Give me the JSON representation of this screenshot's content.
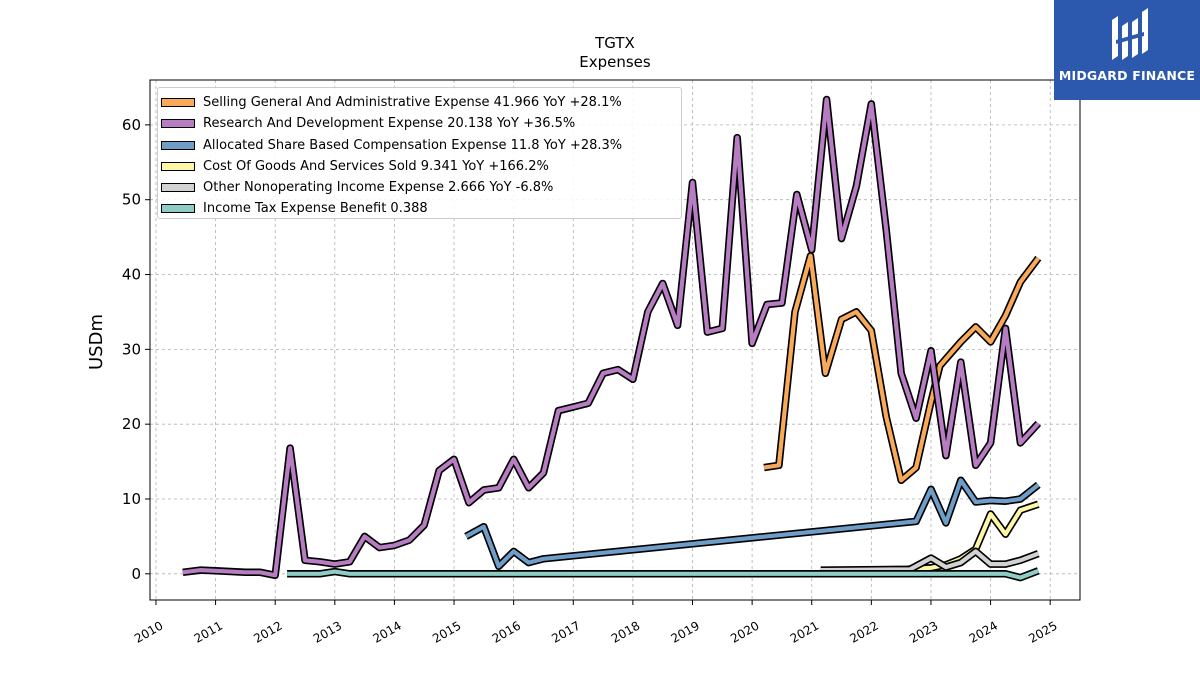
{
  "brand": {
    "name": "MIDGARD FINANCE"
  },
  "chart_data": {
    "type": "line",
    "title": "TGTX",
    "subtitle": "Expenses",
    "ylabel": "USDm",
    "xlabel": "",
    "ylim": [
      -3.5,
      66
    ],
    "xlim": [
      2009.9,
      2025.5
    ],
    "yticks": [
      0,
      10,
      20,
      30,
      40,
      50,
      60
    ],
    "xticks": [
      2010,
      2011,
      2012,
      2013,
      2014,
      2015,
      2016,
      2017,
      2018,
      2019,
      2020,
      2021,
      2022,
      2023,
      2024,
      2025
    ],
    "grid": true,
    "legend_position": "top-left",
    "series": [
      {
        "name": "Selling General And Administrative Expense",
        "legend_label": "Selling General And Administrative Expense  41.966 YoY +28.1%",
        "color": "#f9a95a",
        "points": [
          [
            2020.2,
            14.2
          ],
          [
            2020.45,
            14.5
          ],
          [
            2020.72,
            35
          ],
          [
            2020.98,
            42.5
          ],
          [
            2021.23,
            26.8
          ],
          [
            2021.5,
            34
          ],
          [
            2021.75,
            35
          ],
          [
            2022.0,
            32.5
          ],
          [
            2022.25,
            21
          ],
          [
            2022.5,
            12.5
          ],
          [
            2022.75,
            14.2
          ],
          [
            2023.0,
            23
          ],
          [
            2023.15,
            27.8
          ],
          [
            2023.5,
            31
          ],
          [
            2023.75,
            33
          ],
          [
            2024.0,
            31
          ],
          [
            2024.25,
            34.5
          ],
          [
            2024.5,
            39
          ],
          [
            2024.8,
            42.2
          ]
        ]
      },
      {
        "name": "Research And Development Expense",
        "legend_label": "Research And Development Expense  20.138 YoY +36.5%",
        "color": "#b77cc2",
        "points": [
          [
            2010.45,
            0.2
          ],
          [
            2010.75,
            0.5
          ],
          [
            2011.0,
            0.4
          ],
          [
            2011.5,
            0.2
          ],
          [
            2011.75,
            0.2
          ],
          [
            2012.0,
            -0.2
          ],
          [
            2012.25,
            16.8
          ],
          [
            2012.5,
            1.8
          ],
          [
            2012.75,
            1.6
          ],
          [
            2013.0,
            1.3
          ],
          [
            2013.25,
            1.6
          ],
          [
            2013.5,
            5
          ],
          [
            2013.75,
            3.5
          ],
          [
            2014.0,
            3.8
          ],
          [
            2014.25,
            4.5
          ],
          [
            2014.5,
            6.5
          ],
          [
            2014.75,
            13.8
          ],
          [
            2015.0,
            15.3
          ],
          [
            2015.25,
            9.5
          ],
          [
            2015.5,
            11.2
          ],
          [
            2015.75,
            11.5
          ],
          [
            2016.0,
            15.3
          ],
          [
            2016.25,
            11.5
          ],
          [
            2016.5,
            13.5
          ],
          [
            2016.75,
            21.8
          ],
          [
            2017.0,
            22.3
          ],
          [
            2017.25,
            22.8
          ],
          [
            2017.5,
            26.8
          ],
          [
            2017.75,
            27.3
          ],
          [
            2018.0,
            26
          ],
          [
            2018.25,
            35
          ],
          [
            2018.5,
            38.8
          ],
          [
            2018.75,
            33.2
          ],
          [
            2019.0,
            52.3
          ],
          [
            2019.25,
            32.3
          ],
          [
            2019.5,
            32.8
          ],
          [
            2019.75,
            58.3
          ],
          [
            2020.0,
            30.8
          ],
          [
            2020.25,
            36
          ],
          [
            2020.5,
            36.2
          ],
          [
            2020.75,
            50.7
          ],
          [
            2021.0,
            43.3
          ],
          [
            2021.25,
            63.4
          ],
          [
            2021.5,
            44.8
          ],
          [
            2021.75,
            51.8
          ],
          [
            2022.0,
            62.8
          ],
          [
            2022.25,
            46
          ],
          [
            2022.5,
            26.8
          ],
          [
            2022.75,
            20.8
          ],
          [
            2023.0,
            29.8
          ],
          [
            2023.25,
            15.8
          ],
          [
            2023.5,
            28.3
          ],
          [
            2023.75,
            14.5
          ],
          [
            2024.0,
            17.5
          ],
          [
            2024.25,
            32.8
          ],
          [
            2024.5,
            17.5
          ],
          [
            2024.8,
            20.1
          ]
        ]
      },
      {
        "name": "Allocated Share Based Compensation Expense",
        "legend_label": "Allocated Share Based Compensation Expense  11.8 YoY +28.3%",
        "color": "#6e9dc8",
        "points": [
          [
            2015.2,
            5
          ],
          [
            2015.5,
            6.3
          ],
          [
            2015.75,
            1
          ],
          [
            2016.0,
            3
          ],
          [
            2016.25,
            1.5
          ],
          [
            2016.5,
            2
          ],
          [
            2022.75,
            7
          ],
          [
            2023.0,
            11.3
          ],
          [
            2023.25,
            6.8
          ],
          [
            2023.5,
            12.5
          ],
          [
            2023.75,
            9.6
          ],
          [
            2024.0,
            9.8
          ],
          [
            2024.25,
            9.7
          ],
          [
            2024.5,
            10
          ],
          [
            2024.8,
            11.9
          ]
        ]
      },
      {
        "name": "Cost Of Goods And Services Sold",
        "legend_label": "Cost Of Goods And Services Sold  9.341 YoY +166.2%",
        "color": "#fdf7a6",
        "points": [
          [
            2022.6,
            0.6
          ],
          [
            2023.0,
            0.8
          ],
          [
            2023.25,
            1.2
          ],
          [
            2023.5,
            2
          ],
          [
            2023.75,
            3.3
          ],
          [
            2024.0,
            8
          ],
          [
            2024.25,
            5.3
          ],
          [
            2024.5,
            8.5
          ],
          [
            2024.8,
            9.3
          ]
        ]
      },
      {
        "name": "Other Nonoperating Income Expense",
        "legend_label": "Other Nonoperating Income Expense  2.666 YoY -6.8%",
        "color": "#d2d2d2",
        "points": [
          [
            2021.15,
            0.5
          ],
          [
            2022.65,
            0.6
          ],
          [
            2023.0,
            2.1
          ],
          [
            2023.25,
            0.9
          ],
          [
            2023.5,
            1.5
          ],
          [
            2023.75,
            3
          ],
          [
            2024.0,
            1.3
          ],
          [
            2024.25,
            1.3
          ],
          [
            2024.5,
            1.8
          ],
          [
            2024.8,
            2.7
          ]
        ]
      },
      {
        "name": "Income Tax Expense Benefit",
        "legend_label": "Income Tax Expense Benefit  0.388",
        "color": "#8ecdc5",
        "points": [
          [
            2012.2,
            0
          ],
          [
            2012.5,
            0
          ],
          [
            2012.75,
            0
          ],
          [
            2013.0,
            0.3
          ],
          [
            2013.25,
            0
          ],
          [
            2013.5,
            0
          ],
          [
            2015.0,
            0
          ],
          [
            2018.0,
            0
          ],
          [
            2021.0,
            0
          ],
          [
            2023.75,
            0
          ],
          [
            2024.0,
            0
          ],
          [
            2024.25,
            0
          ],
          [
            2024.5,
            -0.5
          ],
          [
            2024.8,
            0.4
          ]
        ]
      }
    ]
  }
}
